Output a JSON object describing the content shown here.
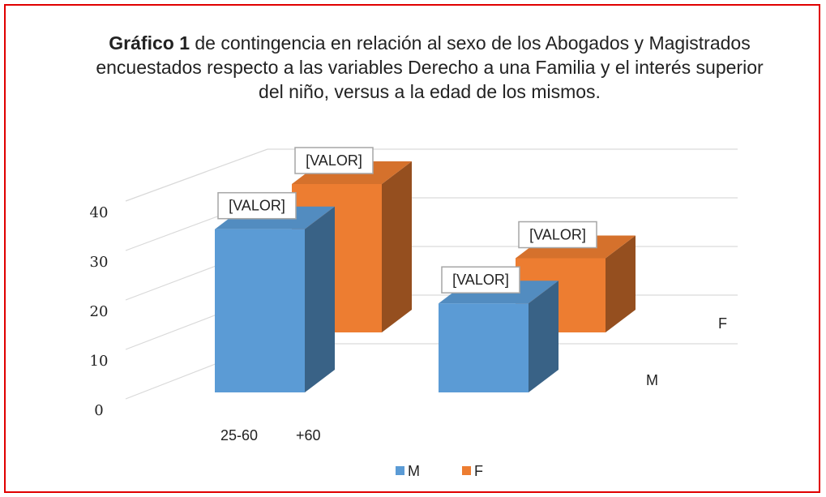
{
  "chart_data": {
    "type": "bar",
    "title": {
      "bold": "Gráfico 1",
      "text": "de contingencia en relación al sexo de los  Abogados y Magistrados  encuestados respecto   a las variables  Derecho a una Familia y el interés superior del niño,  versus a la edad de los mismos."
    },
    "categories": [
      "25-60",
      "+60"
    ],
    "series": [
      {
        "name": "M",
        "color": "#5b9bd5",
        "values": [
          33,
          18
        ],
        "value_labels": [
          "[VALOR]",
          "[VALOR]"
        ]
      },
      {
        "name": "F",
        "color": "#ed7d31",
        "values": [
          30,
          15
        ],
        "value_labels": [
          "[VALOR]",
          "[VALOR]"
        ]
      }
    ],
    "ylim": [
      0,
      40
    ],
    "yticks": [
      0,
      10,
      20,
      30,
      40
    ],
    "grid": true,
    "legend": "bottom"
  }
}
